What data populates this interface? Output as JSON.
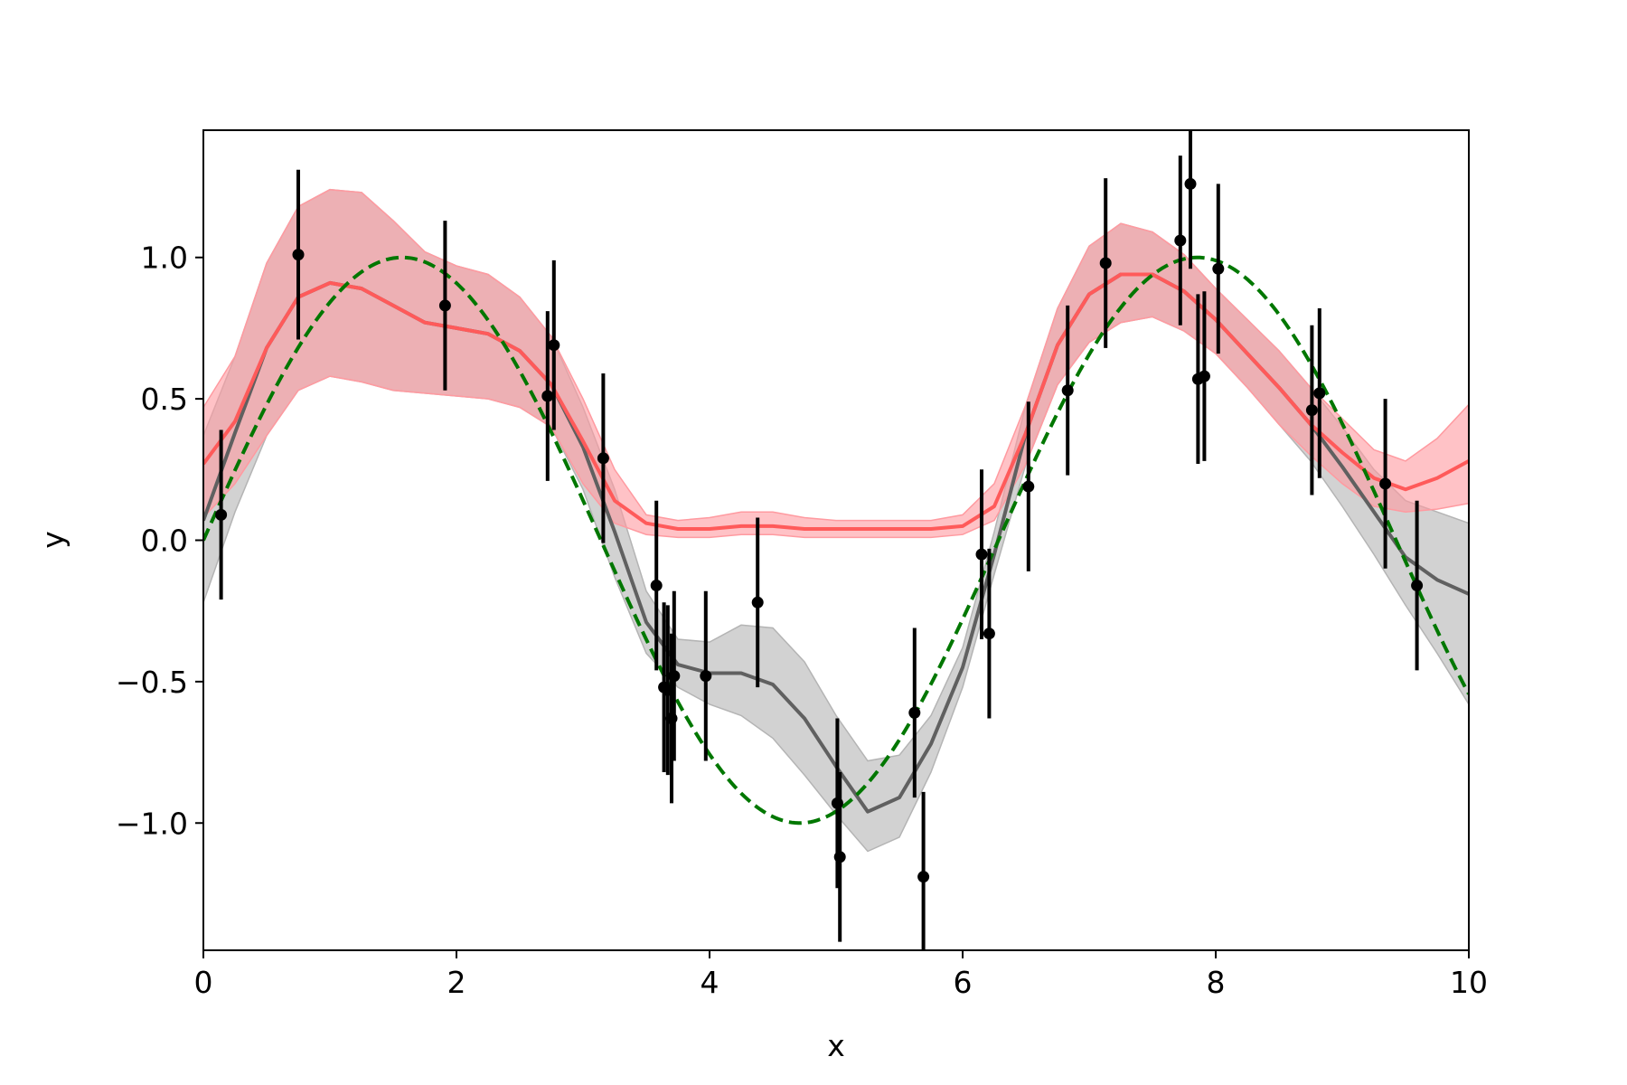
{
  "chart_data": {
    "type": "line",
    "xlabel": "x",
    "ylabel": "y",
    "xlim": [
      0,
      10
    ],
    "ylim": [
      -1.45,
      1.45
    ],
    "xticks": [
      0,
      2,
      4,
      6,
      8,
      10
    ],
    "yticks": [
      -1.0,
      -0.5,
      0.0,
      0.5,
      1.0
    ],
    "xtick_labels": [
      "0",
      "2",
      "4",
      "6",
      "8",
      "10"
    ],
    "ytick_labels": [
      "−1.0",
      "−0.5",
      "0.0",
      "0.5",
      "1.0"
    ],
    "grid": false,
    "colors": {
      "gray_mean": "#606060",
      "gray_band": "#b4b4b4",
      "red_mean": "#ff5a5a",
      "red_band": "#ff9aa0",
      "truth": "#007700",
      "points": "#000000"
    },
    "series": [
      {
        "kind": "band",
        "color": "gray_band",
        "x": [
          0,
          0.25,
          0.5,
          0.75,
          1.0,
          1.25,
          1.5,
          1.75,
          2.0,
          2.25,
          2.5,
          2.75,
          3.0,
          3.25,
          3.5,
          3.75,
          4.0,
          4.25,
          4.5,
          4.75,
          5.0,
          5.25,
          5.5,
          5.75,
          6.0,
          6.25,
          6.5,
          6.75,
          7.0,
          7.25,
          7.5,
          7.75,
          8.0,
          8.25,
          8.5,
          8.75,
          9.0,
          9.25,
          9.5,
          9.75,
          10.0
        ],
        "lower": [
          -0.22,
          0.1,
          0.37,
          0.53,
          0.58,
          0.56,
          0.53,
          0.52,
          0.51,
          0.5,
          0.47,
          0.4,
          0.18,
          -0.13,
          -0.4,
          -0.52,
          -0.58,
          -0.62,
          -0.7,
          -0.83,
          -0.97,
          -1.1,
          -1.05,
          -0.82,
          -0.52,
          -0.12,
          0.27,
          0.55,
          0.7,
          0.77,
          0.79,
          0.74,
          0.66,
          0.54,
          0.41,
          0.28,
          0.12,
          -0.05,
          -0.23,
          -0.4,
          -0.58
        ],
        "upper": [
          0.37,
          0.65,
          0.98,
          1.18,
          1.24,
          1.23,
          1.13,
          1.02,
          0.97,
          0.94,
          0.86,
          0.72,
          0.47,
          0.18,
          -0.18,
          -0.35,
          -0.36,
          -0.3,
          -0.31,
          -0.43,
          -0.62,
          -0.78,
          -0.76,
          -0.62,
          -0.38,
          0.03,
          0.48,
          0.82,
          1.04,
          1.12,
          1.09,
          1.01,
          0.89,
          0.78,
          0.67,
          0.54,
          0.4,
          0.25,
          0.14,
          0.1,
          0.06
        ]
      },
      {
        "kind": "band",
        "color": "red_band",
        "x": [
          0,
          0.25,
          0.5,
          0.75,
          1.0,
          1.25,
          1.5,
          1.75,
          2.0,
          2.25,
          2.5,
          2.75,
          3.0,
          3.25,
          3.5,
          3.75,
          4.0,
          4.25,
          4.5,
          4.75,
          5.0,
          5.25,
          5.5,
          5.75,
          6.0,
          6.25,
          6.5,
          6.75,
          7.0,
          7.25,
          7.5,
          7.75,
          8.0,
          8.25,
          8.5,
          8.75,
          9.0,
          9.25,
          9.5,
          9.75,
          10.0
        ],
        "lower": [
          0.08,
          0.2,
          0.37,
          0.53,
          0.58,
          0.56,
          0.53,
          0.52,
          0.51,
          0.5,
          0.47,
          0.4,
          0.2,
          0.06,
          0.02,
          0.01,
          0.01,
          0.02,
          0.02,
          0.01,
          0.01,
          0.01,
          0.01,
          0.01,
          0.02,
          0.07,
          0.27,
          0.55,
          0.7,
          0.77,
          0.79,
          0.74,
          0.66,
          0.54,
          0.41,
          0.3,
          0.2,
          0.12,
          0.1,
          0.11,
          0.13
        ],
        "upper": [
          0.47,
          0.65,
          0.98,
          1.18,
          1.24,
          1.23,
          1.13,
          1.02,
          0.97,
          0.94,
          0.86,
          0.72,
          0.5,
          0.25,
          0.09,
          0.07,
          0.08,
          0.1,
          0.1,
          0.08,
          0.07,
          0.07,
          0.07,
          0.07,
          0.09,
          0.2,
          0.48,
          0.82,
          1.04,
          1.12,
          1.09,
          1.01,
          0.89,
          0.78,
          0.67,
          0.54,
          0.43,
          0.32,
          0.28,
          0.36,
          0.48
        ]
      },
      {
        "kind": "line",
        "color": "gray_mean",
        "dash": false,
        "x": [
          0,
          0.25,
          0.5,
          0.75,
          1.0,
          1.25,
          1.5,
          1.75,
          2.0,
          2.25,
          2.5,
          2.75,
          3.0,
          3.25,
          3.5,
          3.75,
          4.0,
          4.25,
          4.5,
          4.75,
          5.0,
          5.25,
          5.5,
          5.75,
          6.0,
          6.25,
          6.5,
          6.75,
          7.0,
          7.25,
          7.5,
          7.75,
          8.0,
          8.25,
          8.5,
          8.75,
          9.0,
          9.25,
          9.5,
          9.75,
          10.0
        ],
        "y": [
          0.07,
          0.38,
          0.68,
          0.86,
          0.91,
          0.89,
          0.83,
          0.77,
          0.75,
          0.73,
          0.67,
          0.55,
          0.33,
          0.03,
          -0.29,
          -0.44,
          -0.47,
          -0.47,
          -0.51,
          -0.63,
          -0.8,
          -0.96,
          -0.91,
          -0.72,
          -0.45,
          -0.05,
          0.38,
          0.69,
          0.87,
          0.94,
          0.94,
          0.88,
          0.78,
          0.66,
          0.54,
          0.41,
          0.26,
          0.1,
          -0.06,
          -0.14,
          -0.19
        ]
      },
      {
        "kind": "line",
        "color": "red_mean",
        "dash": false,
        "x": [
          0,
          0.25,
          0.5,
          0.75,
          1.0,
          1.25,
          1.5,
          1.75,
          2.0,
          2.25,
          2.5,
          2.75,
          3.0,
          3.25,
          3.5,
          3.75,
          4.0,
          4.25,
          4.5,
          4.75,
          5.0,
          5.25,
          5.5,
          5.75,
          6.0,
          6.25,
          6.5,
          6.75,
          7.0,
          7.25,
          7.5,
          7.75,
          8.0,
          8.25,
          8.5,
          8.75,
          9.0,
          9.25,
          9.5,
          9.75,
          10.0
        ],
        "y": [
          0.27,
          0.42,
          0.68,
          0.86,
          0.91,
          0.89,
          0.83,
          0.77,
          0.75,
          0.73,
          0.67,
          0.55,
          0.35,
          0.14,
          0.06,
          0.04,
          0.04,
          0.05,
          0.05,
          0.04,
          0.04,
          0.04,
          0.04,
          0.04,
          0.05,
          0.12,
          0.38,
          0.69,
          0.87,
          0.94,
          0.94,
          0.88,
          0.78,
          0.66,
          0.54,
          0.41,
          0.31,
          0.22,
          0.18,
          0.22,
          0.28
        ]
      },
      {
        "kind": "function",
        "function": "sin",
        "color": "truth",
        "dash": true
      },
      {
        "kind": "errorbar",
        "color": "points",
        "x": [
          0.14,
          0.75,
          1.91,
          2.72,
          2.77,
          3.16,
          3.58,
          3.64,
          3.67,
          3.7,
          3.72,
          3.97,
          4.38,
          5.01,
          5.03,
          5.62,
          5.69,
          6.15,
          6.21,
          6.52,
          6.83,
          7.13,
          7.72,
          7.8,
          7.86,
          7.91,
          8.02,
          8.76,
          8.82,
          9.34,
          9.59
        ],
        "y": [
          0.09,
          1.01,
          0.83,
          0.51,
          0.69,
          0.29,
          -0.16,
          -0.52,
          -0.53,
          -0.63,
          -0.48,
          -0.48,
          -0.22,
          -0.93,
          -1.12,
          -0.61,
          -1.19,
          -0.05,
          -0.33,
          0.19,
          0.53,
          0.98,
          1.06,
          1.26,
          0.57,
          0.58,
          0.96,
          0.46,
          0.52,
          0.2,
          -0.16
        ],
        "yerr": 0.3
      }
    ]
  }
}
